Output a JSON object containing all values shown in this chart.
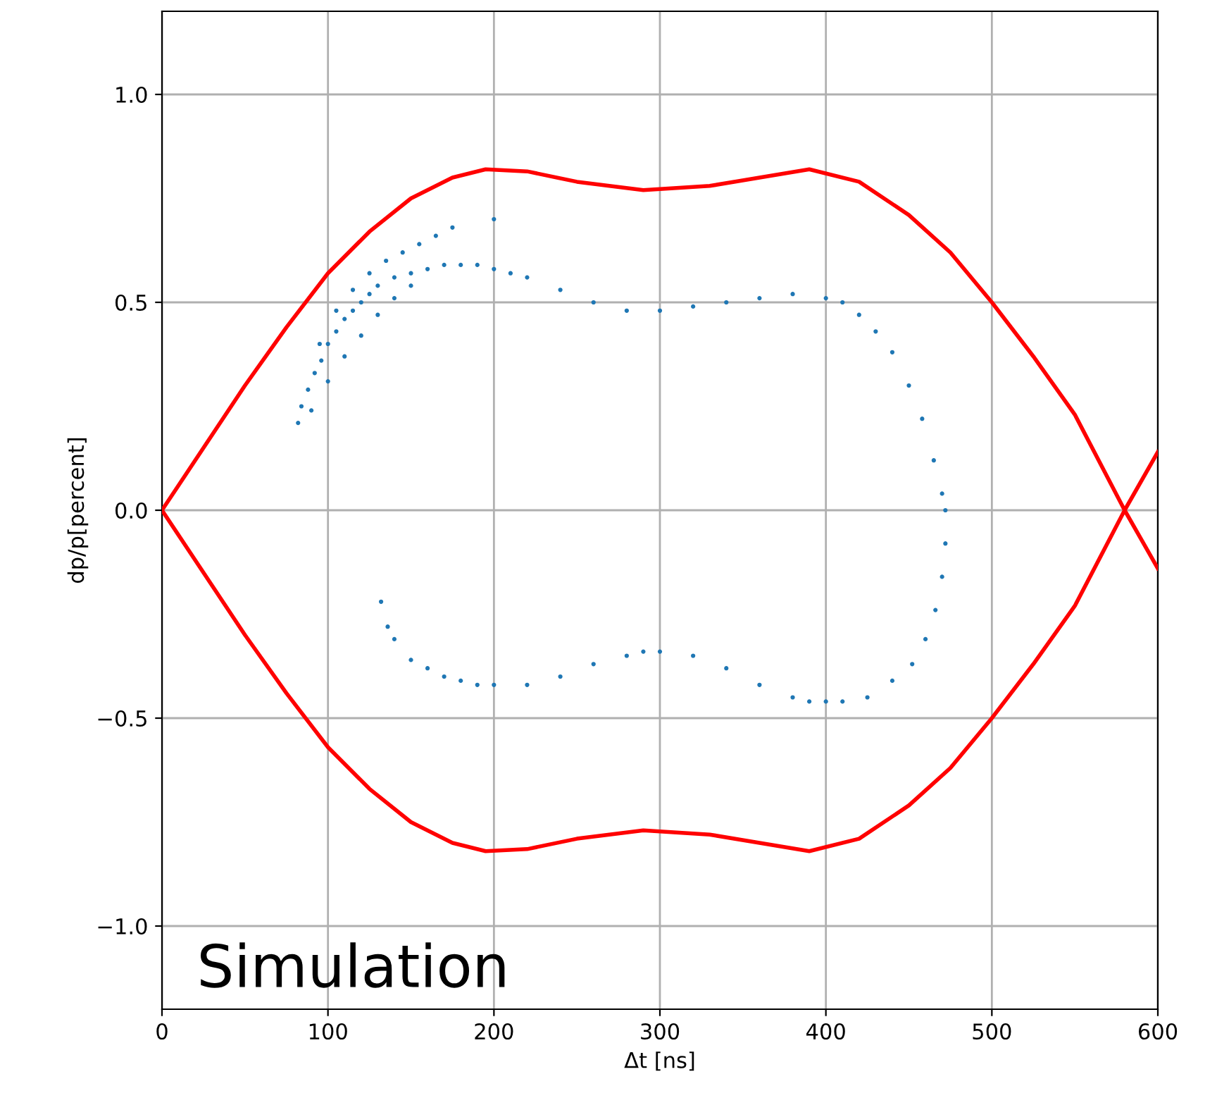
{
  "chart_data": {
    "type": "scatter",
    "xlabel": "Δt [ns]",
    "ylabel": "dp/p[percent]",
    "xlim": [
      0,
      600
    ],
    "ylim": [
      -1.2,
      1.2
    ],
    "xticks": [
      0,
      100,
      200,
      300,
      400,
      500,
      600
    ],
    "yticks": [
      {
        "value": -1.0,
        "label": "−1.0"
      },
      {
        "value": -0.5,
        "label": "−0.5"
      },
      {
        "value": 0.0,
        "label": "0.0"
      },
      {
        "value": 0.5,
        "label": "0.5"
      },
      {
        "value": 1.0,
        "label": "1.0"
      }
    ],
    "grid": true,
    "annotations": [
      "Simulation"
    ],
    "series": [
      {
        "marker": "circle",
        "color": "#1f77b4",
        "x": [
          82,
          84,
          88,
          92,
          96,
          100,
          105,
          110,
          115,
          120,
          125,
          130,
          140,
          150,
          160,
          170,
          180,
          190,
          200,
          210,
          220,
          240,
          260,
          280,
          300,
          320,
          340,
          360,
          380,
          400,
          410,
          420,
          430,
          440,
          450,
          458,
          465,
          470,
          472,
          472,
          470,
          466,
          460,
          452,
          440,
          425,
          410,
          400,
          390,
          380,
          360,
          340,
          320,
          300,
          290,
          280,
          260,
          240,
          220,
          200,
          190,
          180,
          170,
          160,
          150,
          140,
          136,
          132,
          90,
          100,
          110,
          120,
          130,
          140,
          150,
          95,
          105,
          115,
          125,
          135,
          145,
          155,
          165,
          175,
          200
        ],
        "values": [
          0.21,
          0.25,
          0.29,
          0.33,
          0.36,
          0.4,
          0.43,
          0.46,
          0.48,
          0.5,
          0.52,
          0.54,
          0.56,
          0.57,
          0.58,
          0.59,
          0.59,
          0.59,
          0.58,
          0.57,
          0.56,
          0.53,
          0.5,
          0.48,
          0.48,
          0.49,
          0.5,
          0.51,
          0.52,
          0.51,
          0.5,
          0.47,
          0.43,
          0.38,
          0.3,
          0.22,
          0.12,
          0.04,
          0.0,
          -0.08,
          -0.16,
          -0.24,
          -0.31,
          -0.37,
          -0.41,
          -0.45,
          -0.46,
          -0.46,
          -0.46,
          -0.45,
          -0.42,
          -0.38,
          -0.35,
          -0.34,
          -0.34,
          -0.35,
          -0.37,
          -0.4,
          -0.42,
          -0.42,
          -0.42,
          -0.41,
          -0.4,
          -0.38,
          -0.36,
          -0.31,
          -0.28,
          -0.22,
          0.24,
          0.31,
          0.37,
          0.42,
          0.47,
          0.51,
          0.54,
          0.4,
          0.48,
          0.53,
          0.57,
          0.6,
          0.62,
          0.64,
          0.66,
          0.68,
          0.7
        ]
      },
      {
        "type": "line",
        "color": "#ff0000",
        "x": [
          0,
          25,
          50,
          75,
          100,
          125,
          150,
          175,
          195,
          220,
          250,
          290,
          330,
          360,
          390,
          420,
          450,
          475,
          500,
          525,
          550,
          580,
          600
        ],
        "values": [
          0.0,
          0.15,
          0.3,
          0.44,
          0.57,
          0.67,
          0.75,
          0.8,
          0.82,
          0.815,
          0.79,
          0.77,
          0.78,
          0.8,
          0.82,
          0.79,
          0.71,
          0.62,
          0.5,
          0.37,
          0.23,
          0.0,
          -0.14
        ]
      },
      {
        "type": "line",
        "color": "#ff0000",
        "x": [
          0,
          25,
          50,
          75,
          100,
          125,
          150,
          175,
          195,
          220,
          250,
          290,
          330,
          360,
          390,
          420,
          450,
          475,
          500,
          525,
          550,
          580,
          600
        ],
        "values": [
          0.0,
          -0.15,
          -0.3,
          -0.44,
          -0.57,
          -0.67,
          -0.75,
          -0.8,
          -0.82,
          -0.815,
          -0.79,
          -0.77,
          -0.78,
          -0.8,
          -0.82,
          -0.79,
          -0.71,
          -0.62,
          -0.5,
          -0.37,
          -0.23,
          0.0,
          0.14
        ]
      }
    ]
  }
}
